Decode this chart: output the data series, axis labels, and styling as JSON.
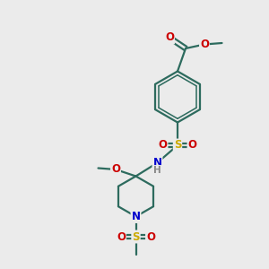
{
  "bg_color": "#ebebeb",
  "atom_colors": {
    "C": "#2d6b5e",
    "O": "#cc0000",
    "N": "#0000cc",
    "S": "#ccaa00",
    "H": "#888888"
  },
  "bond_color": "#2d6b5e",
  "bond_width": 1.6,
  "font_size_atom": 8.5,
  "font_size_h": 7.5
}
